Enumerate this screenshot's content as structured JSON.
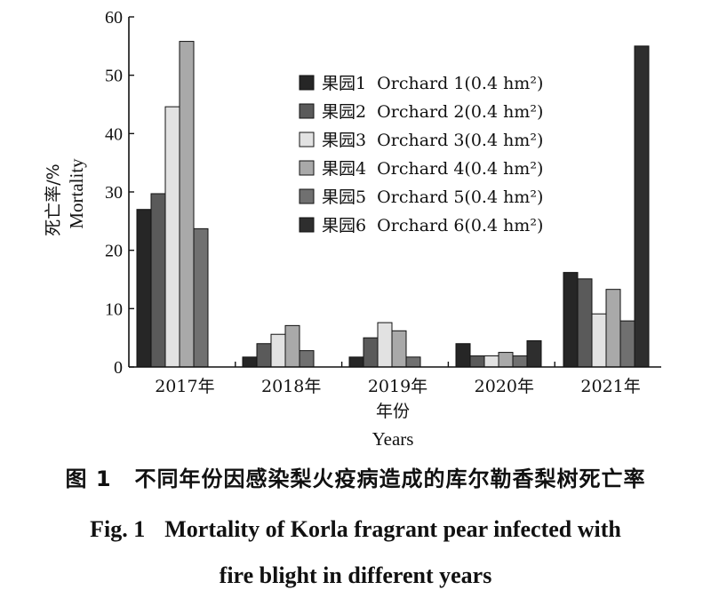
{
  "chart_data": {
    "type": "bar",
    "categories": [
      "2017年",
      "2018年",
      "2019年",
      "2020年",
      "2021年"
    ],
    "series": [
      {
        "name": "果园1  Orchard 1(0.4 hm²)",
        "color": "#262626",
        "values": [
          27.0,
          1.7,
          1.7,
          4.0,
          16.2
        ]
      },
      {
        "name": "果园2  Orchard 2(0.4 hm²)",
        "color": "#5a5a5a",
        "values": [
          29.7,
          4.0,
          5.0,
          1.9,
          15.1
        ]
      },
      {
        "name": "果园3  Orchard 3(0.4 hm²)",
        "color": "#e2e2e2",
        "values": [
          44.6,
          5.6,
          7.6,
          1.9,
          9.1
        ]
      },
      {
        "name": "果园4  Orchard 4(0.4 hm²)",
        "color": "#a9a9a9",
        "values": [
          55.8,
          7.1,
          6.2,
          2.5,
          13.3
        ]
      },
      {
        "name": "果园5  Orchard 5(0.4 hm²)",
        "color": "#707070",
        "values": [
          23.7,
          2.8,
          1.7,
          1.9,
          7.9
        ]
      },
      {
        "name": "果园6  Orchard 6(0.4 hm²)",
        "color": "#2e2e2e",
        "values": [
          0,
          0,
          0,
          4.5,
          55.0
        ]
      }
    ],
    "ylabel_cn": "死亡率/%",
    "ylabel_en": "Mortality",
    "xlabel_cn": "年份",
    "xlabel_en": "Years",
    "ylim": [
      0,
      60
    ],
    "yticks": [
      0,
      10,
      20,
      30,
      40,
      50,
      60
    ],
    "legend_position": "top-right",
    "grid": false
  },
  "caption": {
    "cn_label": "图 1",
    "cn_text": "不同年份因感染梨火疫病造成的库尔勒香梨树死亡率",
    "en_label": "Fig. 1",
    "en_line1": "Mortality of Korla fragrant pear infected with",
    "en_line2": "fire blight in different years"
  }
}
